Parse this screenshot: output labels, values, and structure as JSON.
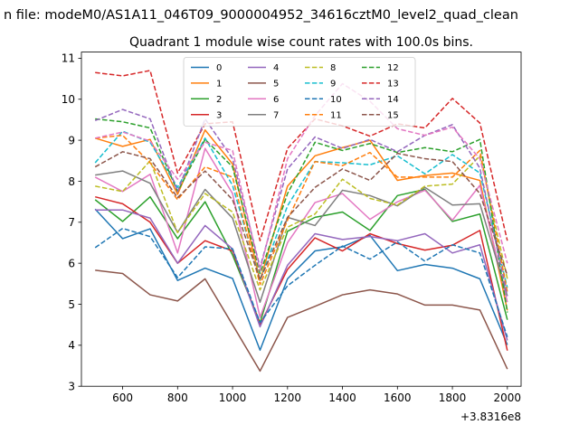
{
  "chart_data": {
    "type": "line",
    "suptitle": "n file: modeM0/AS1A11_046T09_9000004952_34616cztM0_level2_quad_clean",
    "title": "Quadrant 1 module wise count rates with 100.0s bins.",
    "xlabel": "",
    "ylabel": "",
    "x_offset_label": "+3.8316e8",
    "x": [
      500,
      600,
      700,
      800,
      900,
      1000,
      1100,
      1200,
      1300,
      1400,
      1500,
      1600,
      1700,
      1800,
      1900,
      2000
    ],
    "xlim": [
      450,
      2050
    ],
    "ylim": [
      3,
      11.15
    ],
    "xticks": [
      600,
      800,
      1000,
      1200,
      1400,
      1600,
      1800,
      2000
    ],
    "xtick_labels": [
      "600",
      "800",
      "1000",
      "1200",
      "1400",
      "1600",
      "1800",
      "2000"
    ],
    "yticks": [
      3,
      4,
      5,
      6,
      7,
      8,
      9,
      10,
      11
    ],
    "ytick_labels": [
      "3",
      "4",
      "5",
      "6",
      "7",
      "8",
      "9",
      "10",
      "11"
    ],
    "legend_placement": "top-center",
    "series": [
      {
        "name": "0",
        "color": "#1f77b4",
        "dash": "solid",
        "values": [
          7.32,
          6.6,
          6.84,
          5.58,
          5.88,
          5.63,
          3.88,
          5.62,
          6.3,
          6.4,
          6.68,
          5.82,
          5.97,
          5.88,
          5.62,
          4.01
        ]
      },
      {
        "name": "1",
        "color": "#ff7f0e",
        "dash": "solid",
        "values": [
          9.05,
          8.85,
          9.02,
          7.68,
          9.25,
          8.42,
          5.58,
          7.88,
          8.62,
          8.82,
          9.0,
          8.02,
          8.14,
          8.2,
          8.02,
          4.85
        ]
      },
      {
        "name": "2",
        "color": "#2ca02c",
        "dash": "solid",
        "values": [
          7.55,
          7.02,
          7.62,
          6.6,
          7.5,
          6.2,
          4.55,
          6.78,
          7.12,
          7.25,
          6.8,
          7.65,
          7.8,
          7.02,
          7.2,
          4.62
        ]
      },
      {
        "name": "3",
        "color": "#d62728",
        "dash": "solid",
        "values": [
          7.62,
          7.45,
          7.0,
          6.0,
          6.55,
          6.3,
          4.5,
          5.85,
          6.62,
          6.3,
          6.72,
          6.48,
          6.32,
          6.44,
          6.8,
          3.87
        ]
      },
      {
        "name": "4",
        "color": "#9467bd",
        "dash": "solid",
        "values": [
          7.3,
          7.3,
          7.1,
          6.0,
          6.92,
          6.35,
          4.45,
          5.95,
          6.72,
          6.58,
          6.65,
          6.55,
          6.72,
          6.25,
          6.45,
          4.12
        ]
      },
      {
        "name": "5",
        "color": "#8c564b",
        "dash": "solid",
        "values": [
          5.83,
          5.75,
          5.23,
          5.08,
          5.62,
          4.5,
          3.37,
          4.68,
          4.95,
          5.23,
          5.35,
          5.25,
          4.98,
          4.98,
          4.86,
          3.42
        ]
      },
      {
        "name": "6",
        "color": "#e377c2",
        "dash": "solid",
        "values": [
          8.1,
          7.75,
          8.17,
          6.25,
          8.8,
          7.7,
          4.68,
          6.5,
          7.48,
          7.7,
          7.07,
          7.5,
          7.78,
          7.05,
          7.9,
          5.05
        ]
      },
      {
        "name": "7",
        "color": "#7f7f7f",
        "dash": "solid",
        "values": [
          8.15,
          8.25,
          7.95,
          6.75,
          7.8,
          7.1,
          5.05,
          7.12,
          6.92,
          7.78,
          7.65,
          7.4,
          7.85,
          7.42,
          7.45,
          5.2
        ]
      },
      {
        "name": "8",
        "color": "#bcbd22",
        "dash": "dashed",
        "values": [
          7.88,
          7.75,
          8.5,
          6.75,
          7.7,
          7.25,
          5.35,
          6.88,
          7.2,
          8.05,
          7.58,
          7.42,
          7.88,
          7.93,
          8.62,
          5.62
        ]
      },
      {
        "name": "9",
        "color": "#17becf",
        "dash": "dashed",
        "values": [
          8.45,
          9.22,
          8.95,
          7.85,
          9.05,
          7.9,
          5.58,
          7.4,
          8.48,
          8.45,
          8.4,
          8.62,
          8.18,
          8.65,
          8.2,
          5.4
        ]
      },
      {
        "name": "10",
        "color": "#1f77b4",
        "dash": "dashed",
        "values": [
          6.38,
          6.85,
          6.65,
          5.65,
          6.4,
          6.35,
          4.55,
          5.45,
          5.95,
          6.42,
          6.1,
          6.52,
          6.05,
          6.45,
          6.25,
          4.2
        ]
      },
      {
        "name": "11",
        "color": "#ff7f0e",
        "dash": "dashed",
        "values": [
          9.05,
          9.12,
          8.45,
          7.55,
          8.35,
          8.1,
          5.48,
          7.05,
          8.48,
          8.38,
          8.7,
          8.1,
          8.1,
          8.1,
          8.75,
          5.3
        ]
      },
      {
        "name": "12",
        "color": "#2ca02c",
        "dash": "dashed",
        "values": [
          9.52,
          9.45,
          9.3,
          7.75,
          9.02,
          8.35,
          5.75,
          7.7,
          8.95,
          8.75,
          8.92,
          8.7,
          8.82,
          8.72,
          9.02,
          4.8
        ]
      },
      {
        "name": "13",
        "color": "#d62728",
        "dash": "dashed",
        "values": [
          10.65,
          10.57,
          10.7,
          8.2,
          9.4,
          9.45,
          6.55,
          8.8,
          9.52,
          9.35,
          9.1,
          9.4,
          9.3,
          10.02,
          9.42,
          6.55
        ]
      },
      {
        "name": "14",
        "color": "#9467bd",
        "dash": "dashed",
        "values": [
          9.48,
          9.75,
          9.52,
          7.75,
          9.52,
          8.55,
          5.9,
          8.3,
          9.08,
          8.8,
          9.02,
          8.72,
          9.12,
          9.38,
          8.32,
          5.2
        ]
      },
      {
        "name": "15",
        "color": "#8c564b",
        "dash": "dashed",
        "values": [
          8.35,
          8.72,
          8.55,
          7.6,
          8.25,
          7.55,
          5.6,
          7.12,
          7.85,
          8.3,
          8.02,
          8.68,
          8.55,
          8.48,
          7.7,
          5.7
        ]
      },
      {
        "name": "",
        "color": "#e377c2",
        "dash": "dashed",
        "values": [
          9.05,
          9.2,
          8.98,
          8.05,
          8.95,
          8.75,
          5.82,
          8.55,
          9.6,
          10.38,
          9.95,
          9.28,
          9.12,
          9.32,
          8.55,
          6.0
        ]
      }
    ]
  }
}
